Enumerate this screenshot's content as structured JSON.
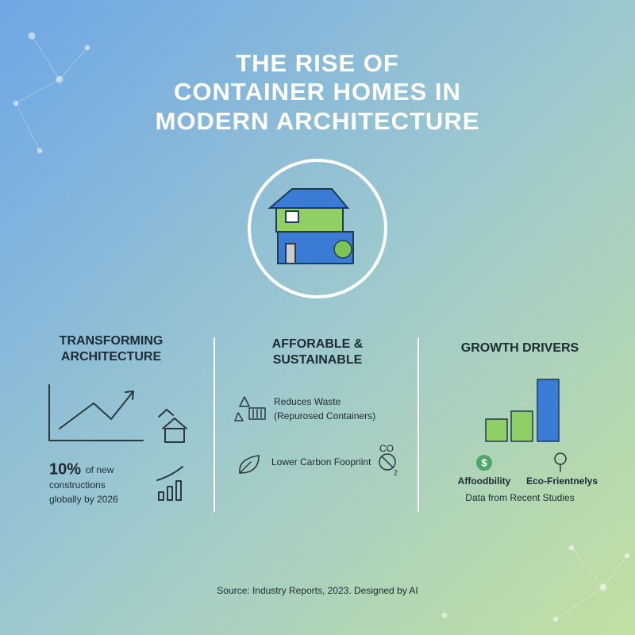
{
  "title": [
    "THE RISE OF",
    "CONTAINER HOMES IN",
    "MODERN ARCHITECTURE"
  ],
  "sections": [
    {
      "heading": [
        "TRANSFORMING",
        "ARCHITECTURE"
      ],
      "stat": "10%",
      "stat_text": [
        "of new",
        "constructions",
        "globally by 2026"
      ]
    },
    {
      "heading": [
        "AFFORABLE &",
        "SUSTAINABLE"
      ],
      "items": [
        [
          "Reduces Waste",
          "(Repurosed Containers)"
        ],
        [
          "Lower Carbon Foopriint"
        ]
      ],
      "co2_icon": [
        "CO",
        "2"
      ]
    },
    {
      "heading": [
        "GROWTH DRIVERS"
      ],
      "dollar_icon": "$",
      "labels": [
        "Affoodbility",
        "Eco-Frientnelys"
      ],
      "note": "Data from Recent Studies"
    }
  ],
  "footer": "Source: Industry Reports, 2023. Designed by AI"
}
